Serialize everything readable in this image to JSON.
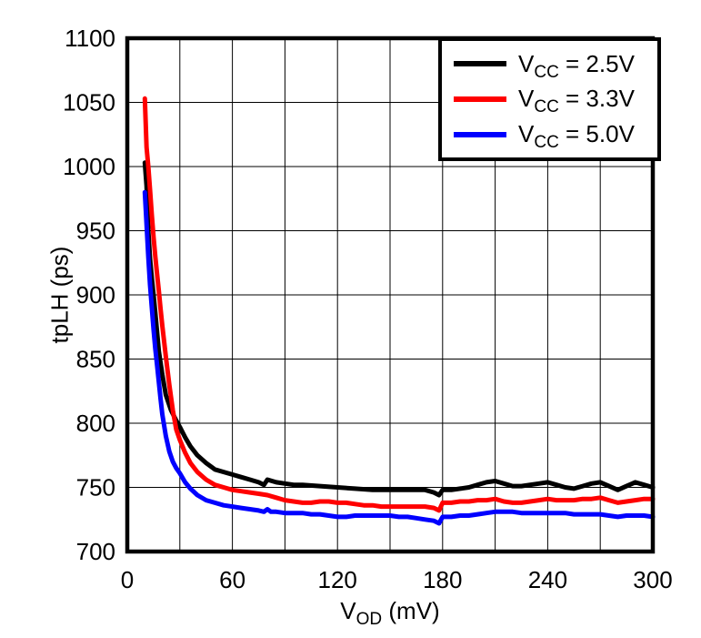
{
  "axes": {
    "x": {
      "title_prefix": "V",
      "title_sub": "OD",
      "title_suffix": " (mV)",
      "ticks": [
        0,
        60,
        120,
        180,
        240,
        300
      ]
    },
    "y": {
      "title": "tpLH (ps)",
      "ticks": [
        700,
        750,
        800,
        850,
        900,
        950,
        1000,
        1050,
        1100
      ]
    }
  },
  "legend": {
    "entries": [
      {
        "prefix": "V",
        "sub": "CC",
        "suffix": " = 2.5V"
      },
      {
        "prefix": "V",
        "sub": "CC",
        "suffix": " = 3.3V"
      },
      {
        "prefix": "V",
        "sub": "CC",
        "suffix": " = 5.0V"
      }
    ]
  },
  "chart_data": {
    "type": "line",
    "title": "",
    "xlabel": "VOD (mV)",
    "ylabel": "tpLH (ps)",
    "xlim": [
      0,
      300
    ],
    "ylim": [
      700,
      1100
    ],
    "x_tick_step": 60,
    "y_tick_step": 50,
    "x_grid_step": 30,
    "y_grid_step": 50,
    "grid": true,
    "legend_position": "top-right",
    "line_width": 5,
    "axis_color": "#000000",
    "series": [
      {
        "name": "VCC = 2.5V",
        "color": "#000000",
        "points": [
          [
            10,
            1003
          ],
          [
            11,
            985
          ],
          [
            12,
            950
          ],
          [
            13,
            928
          ],
          [
            14,
            913
          ],
          [
            15,
            900
          ],
          [
            16,
            886
          ],
          [
            18,
            856
          ],
          [
            20,
            838
          ],
          [
            22,
            822
          ],
          [
            25,
            810
          ],
          [
            28,
            802
          ],
          [
            30,
            797
          ],
          [
            33,
            789
          ],
          [
            36,
            782
          ],
          [
            40,
            775
          ],
          [
            45,
            769
          ],
          [
            50,
            764
          ],
          [
            55,
            762
          ],
          [
            60,
            760
          ],
          [
            65,
            758
          ],
          [
            70,
            756
          ],
          [
            75,
            754
          ],
          [
            78,
            752
          ],
          [
            80,
            756
          ],
          [
            85,
            754
          ],
          [
            90,
            753
          ],
          [
            95,
            752
          ],
          [
            100,
            752
          ],
          [
            110,
            751
          ],
          [
            120,
            750
          ],
          [
            130,
            749
          ],
          [
            140,
            748
          ],
          [
            150,
            748
          ],
          [
            160,
            748
          ],
          [
            170,
            748
          ],
          [
            175,
            746
          ],
          [
            178,
            744
          ],
          [
            180,
            748
          ],
          [
            185,
            748
          ],
          [
            190,
            749
          ],
          [
            195,
            750
          ],
          [
            200,
            752
          ],
          [
            205,
            754
          ],
          [
            210,
            755
          ],
          [
            215,
            753
          ],
          [
            220,
            751
          ],
          [
            225,
            751
          ],
          [
            230,
            752
          ],
          [
            235,
            753
          ],
          [
            240,
            754
          ],
          [
            245,
            752
          ],
          [
            250,
            750
          ],
          [
            255,
            749
          ],
          [
            260,
            751
          ],
          [
            265,
            753
          ],
          [
            270,
            754
          ],
          [
            275,
            751
          ],
          [
            280,
            748
          ],
          [
            285,
            751
          ],
          [
            290,
            754
          ],
          [
            295,
            752
          ],
          [
            300,
            750
          ]
        ]
      },
      {
        "name": "VCC = 3.3V",
        "color": "#ff0000",
        "points": [
          [
            10,
            1053
          ],
          [
            11,
            1015
          ],
          [
            12,
            1000
          ],
          [
            13,
            982
          ],
          [
            14,
            962
          ],
          [
            15,
            945
          ],
          [
            16,
            930
          ],
          [
            17,
            916
          ],
          [
            18,
            903
          ],
          [
            19,
            889
          ],
          [
            20,
            876
          ],
          [
            22,
            852
          ],
          [
            24,
            830
          ],
          [
            26,
            810
          ],
          [
            28,
            795
          ],
          [
            30,
            787
          ],
          [
            33,
            777
          ],
          [
            36,
            769
          ],
          [
            40,
            762
          ],
          [
            45,
            756
          ],
          [
            50,
            752
          ],
          [
            55,
            750
          ],
          [
            60,
            748
          ],
          [
            65,
            747
          ],
          [
            70,
            746
          ],
          [
            75,
            745
          ],
          [
            80,
            744
          ],
          [
            85,
            742
          ],
          [
            90,
            740
          ],
          [
            95,
            739
          ],
          [
            100,
            738
          ],
          [
            105,
            738
          ],
          [
            110,
            739
          ],
          [
            115,
            739
          ],
          [
            120,
            738
          ],
          [
            125,
            738
          ],
          [
            130,
            737
          ],
          [
            135,
            736
          ],
          [
            140,
            736
          ],
          [
            145,
            735
          ],
          [
            150,
            735
          ],
          [
            155,
            735
          ],
          [
            160,
            735
          ],
          [
            165,
            735
          ],
          [
            170,
            735
          ],
          [
            175,
            734
          ],
          [
            178,
            732
          ],
          [
            180,
            738
          ],
          [
            185,
            738
          ],
          [
            190,
            739
          ],
          [
            195,
            739
          ],
          [
            200,
            740
          ],
          [
            205,
            740
          ],
          [
            210,
            741
          ],
          [
            215,
            739
          ],
          [
            220,
            738
          ],
          [
            225,
            738
          ],
          [
            230,
            739
          ],
          [
            235,
            740
          ],
          [
            240,
            741
          ],
          [
            245,
            740
          ],
          [
            250,
            740
          ],
          [
            255,
            740
          ],
          [
            260,
            741
          ],
          [
            265,
            741
          ],
          [
            270,
            742
          ],
          [
            275,
            740
          ],
          [
            280,
            738
          ],
          [
            285,
            739
          ],
          [
            290,
            740
          ],
          [
            295,
            741
          ],
          [
            300,
            741
          ]
        ]
      },
      {
        "name": "VCC = 5.0V",
        "color": "#0000ff",
        "points": [
          [
            10,
            980
          ],
          [
            11,
            955
          ],
          [
            12,
            930
          ],
          [
            13,
            908
          ],
          [
            14,
            890
          ],
          [
            15,
            873
          ],
          [
            16,
            858
          ],
          [
            17,
            845
          ],
          [
            18,
            832
          ],
          [
            19,
            819
          ],
          [
            20,
            807
          ],
          [
            22,
            790
          ],
          [
            24,
            778
          ],
          [
            26,
            770
          ],
          [
            28,
            765
          ],
          [
            30,
            761
          ],
          [
            33,
            754
          ],
          [
            36,
            749
          ],
          [
            40,
            744
          ],
          [
            45,
            740
          ],
          [
            50,
            738
          ],
          [
            55,
            736
          ],
          [
            60,
            735
          ],
          [
            65,
            734
          ],
          [
            70,
            733
          ],
          [
            75,
            732
          ],
          [
            78,
            731
          ],
          [
            80,
            733
          ],
          [
            82,
            731
          ],
          [
            85,
            731
          ],
          [
            90,
            730
          ],
          [
            95,
            730
          ],
          [
            100,
            730
          ],
          [
            105,
            729
          ],
          [
            110,
            729
          ],
          [
            115,
            728
          ],
          [
            120,
            727
          ],
          [
            125,
            727
          ],
          [
            130,
            728
          ],
          [
            135,
            728
          ],
          [
            140,
            728
          ],
          [
            145,
            728
          ],
          [
            150,
            728
          ],
          [
            155,
            727
          ],
          [
            160,
            727
          ],
          [
            165,
            726
          ],
          [
            170,
            725
          ],
          [
            175,
            724
          ],
          [
            178,
            722
          ],
          [
            180,
            727
          ],
          [
            185,
            727
          ],
          [
            190,
            728
          ],
          [
            195,
            728
          ],
          [
            200,
            729
          ],
          [
            205,
            730
          ],
          [
            210,
            731
          ],
          [
            215,
            731
          ],
          [
            220,
            731
          ],
          [
            225,
            730
          ],
          [
            230,
            730
          ],
          [
            235,
            730
          ],
          [
            240,
            730
          ],
          [
            245,
            730
          ],
          [
            250,
            730
          ],
          [
            255,
            729
          ],
          [
            260,
            729
          ],
          [
            265,
            729
          ],
          [
            270,
            729
          ],
          [
            275,
            728
          ],
          [
            280,
            727
          ],
          [
            285,
            728
          ],
          [
            290,
            728
          ],
          [
            295,
            728
          ],
          [
            300,
            727
          ]
        ]
      }
    ]
  }
}
